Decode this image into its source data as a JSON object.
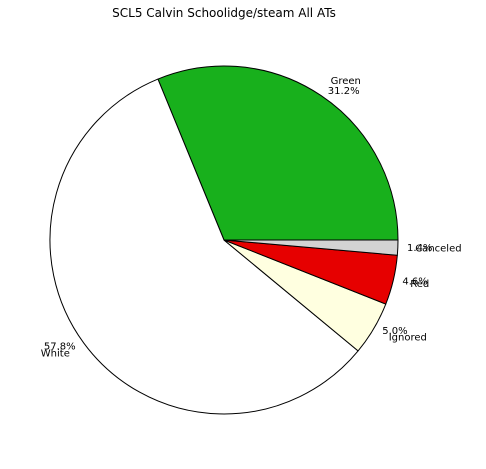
{
  "chart_data": {
    "type": "pie",
    "title": "SCL5 Calvin Schoolidge/steam All ATs",
    "start_angle_deg": 0,
    "direction": "counterclockwise",
    "slices": [
      {
        "label": "Green",
        "value": 31.2,
        "pct_label": "31.2%",
        "color": "#18b01c"
      },
      {
        "label": "White",
        "value": 57.8,
        "pct_label": "57.8%",
        "color": "#ffffff"
      },
      {
        "label": "Ignored",
        "value": 5.0,
        "pct_label": "5.0%",
        "color": "#ffffe0"
      },
      {
        "label": "Red",
        "value": 4.6,
        "pct_label": "4.6%",
        "color": "#e60000"
      },
      {
        "label": "Canceled",
        "value": 1.4,
        "pct_label": "1.4%",
        "color": "#d3d3d3"
      }
    ],
    "edge_color": "#000000"
  }
}
